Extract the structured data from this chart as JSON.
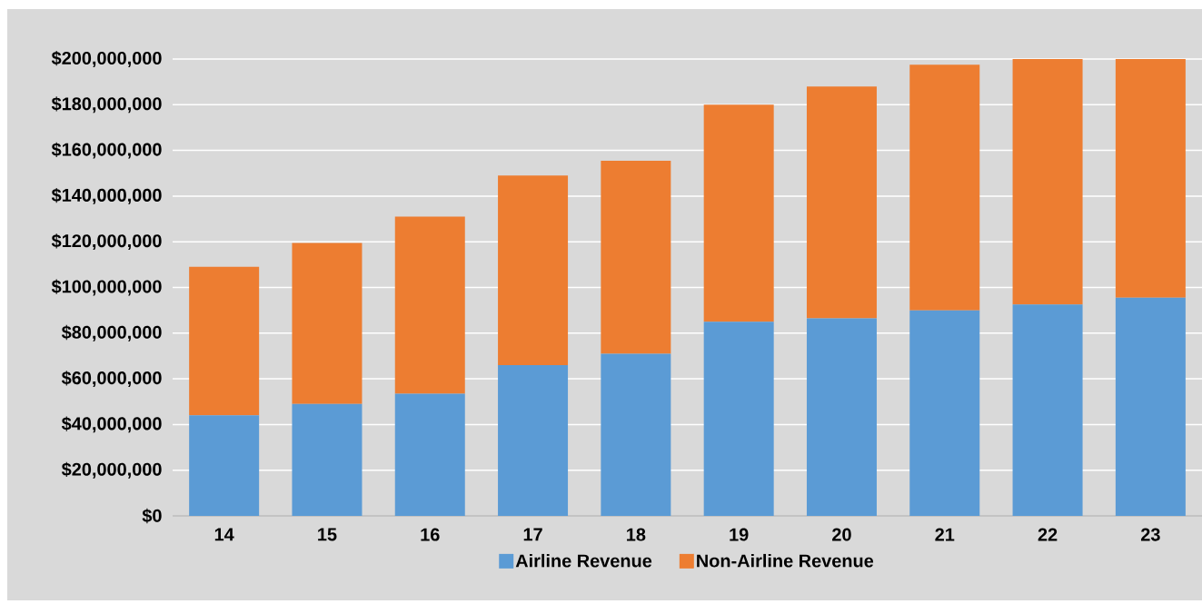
{
  "chart_data": {
    "type": "bar",
    "stacked": true,
    "categories": [
      "14",
      "15",
      "16",
      "17",
      "18",
      "19",
      "20",
      "21",
      "22",
      "23"
    ],
    "series": [
      {
        "name": "Airline Revenue",
        "color": "#5b9bd5",
        "values": [
          44000000,
          49000000,
          53500000,
          66000000,
          71000000,
          85000000,
          86500000,
          90000000,
          92500000,
          95500000
        ]
      },
      {
        "name": "Non-Airline Revenue",
        "color": "#ed7d31",
        "values": [
          65000000,
          70500000,
          77500000,
          83000000,
          84500000,
          95000000,
          101500000,
          107500000,
          107500000,
          104500000
        ]
      }
    ],
    "ylim": [
      0,
      200000000
    ],
    "yticks": [
      {
        "value": 0,
        "label": "$0"
      },
      {
        "value": 20000000,
        "label": "$20,000,000"
      },
      {
        "value": 40000000,
        "label": "$40,000,000"
      },
      {
        "value": 60000000,
        "label": "$60,000,000"
      },
      {
        "value": 80000000,
        "label": "$80,000,000"
      },
      {
        "value": 100000000,
        "label": "$100,000,000"
      },
      {
        "value": 120000000,
        "label": "$120,000,000"
      },
      {
        "value": 140000000,
        "label": "$140,000,000"
      },
      {
        "value": 160000000,
        "label": "$160,000,000"
      },
      {
        "value": 180000000,
        "label": "$180,000,000"
      },
      {
        "value": 200000000,
        "label": "$200,000,000"
      }
    ],
    "grid": "y",
    "legend": "bottom"
  }
}
